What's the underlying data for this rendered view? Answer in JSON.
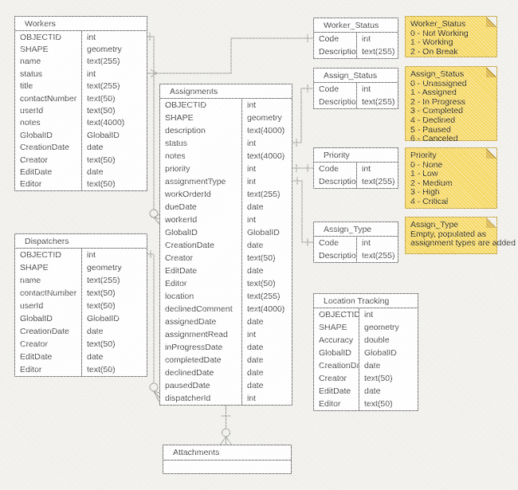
{
  "diagram": {
    "kind": "entity-relationship-diagram",
    "background_color": "#f1f0ec",
    "table_fill": "#ffffff",
    "table_border_color": "#7d7d7d",
    "connector_color": "#9b9b9b",
    "note_fill": "#f7d964",
    "note_border": "#c6a53e"
  },
  "tables": [
    {
      "id": "workers",
      "title": "Workers",
      "fields": [
        {
          "name": "OBJECTID",
          "type": "int"
        },
        {
          "name": "SHAPE",
          "type": "geometry"
        },
        {
          "name": "name",
          "type": "text(255)"
        },
        {
          "name": "status",
          "type": "int"
        },
        {
          "name": "title",
          "type": "text(255)"
        },
        {
          "name": "contactNumber",
          "type": "text(50)"
        },
        {
          "name": "userId",
          "type": "text(50)"
        },
        {
          "name": "notes",
          "type": "text(4000)"
        },
        {
          "name": "GlobalID",
          "type": "GlobalID"
        },
        {
          "name": "CreationDate",
          "type": "date"
        },
        {
          "name": "Creator",
          "type": "text(50)"
        },
        {
          "name": "EditDate",
          "type": "date"
        },
        {
          "name": "Editor",
          "type": "text(50)"
        }
      ]
    },
    {
      "id": "dispatchers",
      "title": "Dispatchers",
      "fields": [
        {
          "name": "OBJECTID",
          "type": "int"
        },
        {
          "name": "SHAPE",
          "type": "geometry"
        },
        {
          "name": "name",
          "type": "text(255)"
        },
        {
          "name": "contactNumber",
          "type": "text(50)"
        },
        {
          "name": "userId",
          "type": "text(50)"
        },
        {
          "name": "GlobalID",
          "type": "GlobalID"
        },
        {
          "name": "CreationDate",
          "type": "date"
        },
        {
          "name": "Creator",
          "type": "text(50)"
        },
        {
          "name": "EditDate",
          "type": "date"
        },
        {
          "name": "Editor",
          "type": "text(50)"
        }
      ]
    },
    {
      "id": "assignments",
      "title": "Assignments",
      "fields": [
        {
          "name": "OBJECTID",
          "type": "int"
        },
        {
          "name": "SHAPE",
          "type": "geometry"
        },
        {
          "name": "description",
          "type": "text(4000)"
        },
        {
          "name": "status",
          "type": "int"
        },
        {
          "name": "notes",
          "type": "text(4000)"
        },
        {
          "name": "priority",
          "type": "int"
        },
        {
          "name": "assignmentType",
          "type": "int"
        },
        {
          "name": "workOrderId",
          "type": "text(255)"
        },
        {
          "name": "dueDate",
          "type": "date"
        },
        {
          "name": "workerId",
          "type": "int"
        },
        {
          "name": "GlobalID",
          "type": "GlobalID"
        },
        {
          "name": "CreationDate",
          "type": "date"
        },
        {
          "name": "Creator",
          "type": "text(50)"
        },
        {
          "name": "EditDate",
          "type": "date"
        },
        {
          "name": "Editor",
          "type": "text(50)"
        },
        {
          "name": "location",
          "type": "text(255)"
        },
        {
          "name": "declinedComment",
          "type": "text(4000)"
        },
        {
          "name": "assignedDate",
          "type": "date"
        },
        {
          "name": "assignmentRead",
          "type": "int"
        },
        {
          "name": "inProgressDate",
          "type": "date"
        },
        {
          "name": "completedDate",
          "type": "date"
        },
        {
          "name": "declinedDate",
          "type": "date"
        },
        {
          "name": "pausedDate",
          "type": "date"
        },
        {
          "name": "dispatcherId",
          "type": "int"
        }
      ]
    },
    {
      "id": "worker_status",
      "title": "Worker_Status",
      "fields": [
        {
          "name": "Code",
          "type": "int"
        },
        {
          "name": "Description",
          "type": "text(255)"
        }
      ]
    },
    {
      "id": "assign_status",
      "title": "Assign_Status",
      "fields": [
        {
          "name": "Code",
          "type": "int"
        },
        {
          "name": "Description",
          "type": "text(255)"
        }
      ]
    },
    {
      "id": "priority",
      "title": "Priority",
      "fields": [
        {
          "name": "Code",
          "type": "int"
        },
        {
          "name": "Description",
          "type": "text(255)"
        }
      ]
    },
    {
      "id": "assign_type",
      "title": "Assign_Type",
      "fields": [
        {
          "name": "Code",
          "type": "int"
        },
        {
          "name": "Description",
          "type": "text(255)"
        }
      ]
    },
    {
      "id": "location_tracking",
      "title": "Location Tracking",
      "fields": [
        {
          "name": "OBJECTID",
          "type": "int"
        },
        {
          "name": "SHAPE",
          "type": "geometry"
        },
        {
          "name": "Accuracy",
          "type": "double"
        },
        {
          "name": "GlobalID",
          "type": "GlobalID"
        },
        {
          "name": "CreationDate",
          "type": "date"
        },
        {
          "name": "Creator",
          "type": "text(50)"
        },
        {
          "name": "EditDate",
          "type": "date"
        },
        {
          "name": "Editor",
          "type": "text(50)"
        }
      ]
    },
    {
      "id": "attachments",
      "title": "Attachments",
      "fields": []
    }
  ],
  "notes": [
    {
      "id": "note_worker_status",
      "title": "Worker_Status",
      "lines": [
        "0 - Not Working",
        "1 - Working",
        "2 - On Break"
      ]
    },
    {
      "id": "note_assign_status",
      "title": "Assign_Status",
      "lines": [
        "0 - Unassigned",
        "1 - Assigned",
        "2 - In Progress",
        "3 - Completed",
        "4 - Declined",
        "5 - Paused",
        "6 - Canceled"
      ]
    },
    {
      "id": "note_priority",
      "title": "Priority",
      "lines": [
        "0 - None",
        "1 - Low",
        "2 - Medium",
        "3 - High",
        "4 - Critical"
      ]
    },
    {
      "id": "note_assign_type",
      "title": "Assign_Type",
      "lines": [
        "Empty, populated as",
        "assignment types are added"
      ]
    }
  ],
  "relationships": [
    {
      "from": "Workers.OBJECTID",
      "to": "Assignments.workerId",
      "from_end": "one",
      "to_end": "zero-or-many"
    },
    {
      "from": "Workers.status",
      "to": "Worker_Status.Code",
      "from_end": "many",
      "to_end": "one"
    },
    {
      "from": "Dispatchers.OBJECTID",
      "to": "Assignments.dispatcherId",
      "from_end": "one",
      "to_end": "zero-or-many"
    },
    {
      "from": "Assignments.status",
      "to": "Assign_Status.Code",
      "from_end": "one",
      "to_end": "one"
    },
    {
      "from": "Assignments.priority",
      "to": "Priority.Code",
      "from_end": "one",
      "to_end": "one"
    },
    {
      "from": "Assignments.assignmentType",
      "to": "Assign_Type.Code",
      "from_end": "one",
      "to_end": "one"
    },
    {
      "from": "Assignments",
      "to": "Attachments",
      "from_end": "one",
      "to_end": "zero-or-many"
    }
  ]
}
